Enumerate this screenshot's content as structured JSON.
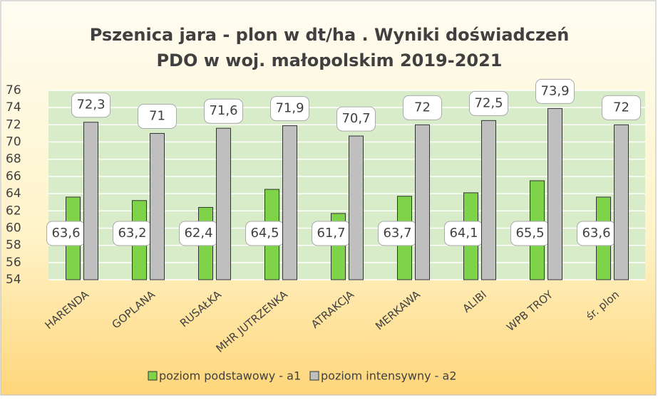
{
  "chart_data": {
    "type": "bar",
    "title": [
      "Pszenica jara -  plon w dt/ha . Wyniki doświadczeń",
      "PDO w woj. małopolskim 2019-2021"
    ],
    "categories": [
      "HARENDA",
      "GOPLANA",
      "RUSAŁKA",
      "MHR JUTRZENKA",
      "ATRAKCJA",
      "MERKAWA",
      "ALIBI",
      "WPB TROY",
      "śr. plon"
    ],
    "series": [
      {
        "name": "poziom podstawowy - a1",
        "color": "#7ed348",
        "values": [
          63.6,
          63.2,
          62.4,
          64.5,
          61.7,
          63.7,
          64.1,
          65.5,
          63.6
        ],
        "value_labels": [
          "63,6",
          "63,2",
          "62,4",
          "64,5",
          "61,7",
          "63,7",
          "64,1",
          "65,5",
          "63,6"
        ]
      },
      {
        "name": "poziom intensywny - a2",
        "color": "#bfbfbf",
        "values": [
          72.3,
          71,
          71.6,
          71.9,
          70.7,
          72,
          72.5,
          73.9,
          72
        ],
        "value_labels": [
          "72,3",
          "71",
          "71,6",
          "71,9",
          "70,7",
          "72",
          "72,5",
          "73,9",
          "72"
        ]
      }
    ],
    "ylim": [
      54,
      76
    ],
    "yticks": [
      54,
      56,
      58,
      60,
      62,
      64,
      66,
      68,
      70,
      72,
      74,
      76
    ],
    "grid": true,
    "legend": "bottom"
  }
}
